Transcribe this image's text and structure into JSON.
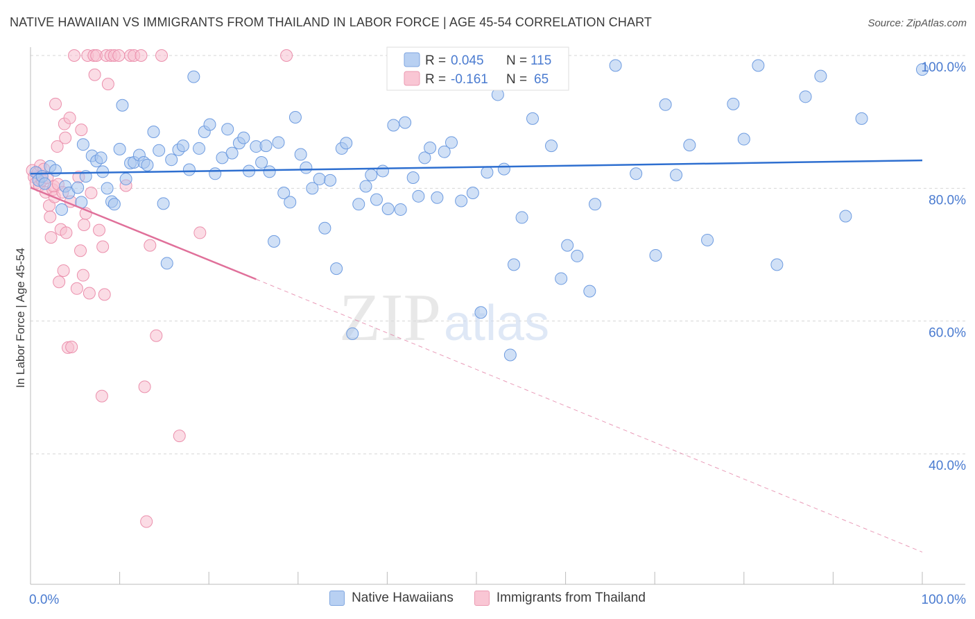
{
  "title": "NATIVE HAWAIIAN VS IMMIGRANTS FROM THAILAND IN LABOR FORCE | AGE 45-54 CORRELATION CHART",
  "source": "Source: ZipAtlas.com",
  "watermark": {
    "zip": "ZIP",
    "atlas": "atlas"
  },
  "colors": {
    "blue_fill": "#a9c6ef",
    "blue_stroke": "#6d9be0",
    "blue_line": "#2e6fd0",
    "pink_fill": "#f7bfd0",
    "pink_stroke": "#eb8fac",
    "pink_line": "#e0709a",
    "axis_text": "#4a7bd0",
    "grid": "#d6d6d6"
  },
  "stats": {
    "native": {
      "r_label": "R =",
      "r": "0.045",
      "n_label": "N =",
      "n": "115"
    },
    "thai": {
      "r_label": "R =",
      "r": "-0.161",
      "n_label": "N =",
      "n": "65"
    }
  },
  "chart_data": {
    "type": "scatter",
    "ylabel": "In Labor Force | Age 45-54",
    "xlim": [
      0,
      100
    ],
    "ylim": [
      20,
      102
    ],
    "x_tick_labels": [
      {
        "v": 0,
        "label": "0.0%"
      },
      {
        "v": 100,
        "label": "100.0%"
      }
    ],
    "y_tick_labels": [
      {
        "v": 100,
        "label": "100.0%"
      },
      {
        "v": 80,
        "label": "80.0%"
      },
      {
        "v": 60,
        "label": "60.0%"
      },
      {
        "v": 40,
        "label": "40.0%"
      }
    ],
    "series": [
      {
        "name": "Native Hawaiians",
        "trend": {
          "x0": 0,
          "y0": 82.2,
          "x1": 100,
          "y1": 84.2
        },
        "points": [
          [
            0.6,
            82.4
          ],
          [
            0.9,
            81.2
          ],
          [
            1.3,
            81.8
          ],
          [
            1.6,
            80.7
          ],
          [
            2.2,
            83.3
          ],
          [
            2.8,
            82.7
          ],
          [
            3.5,
            76.8
          ],
          [
            3.9,
            80.3
          ],
          [
            4.3,
            79.3
          ],
          [
            5.3,
            80.1
          ],
          [
            5.7,
            77.9
          ],
          [
            5.9,
            86.6
          ],
          [
            6.2,
            81.8
          ],
          [
            6.9,
            84.9
          ],
          [
            7.4,
            84.1
          ],
          [
            7.9,
            84.6
          ],
          [
            8.1,
            82.5
          ],
          [
            8.6,
            80.0
          ],
          [
            9.1,
            78.0
          ],
          [
            9.4,
            77.6
          ],
          [
            10.0,
            85.9
          ],
          [
            10.3,
            92.5
          ],
          [
            10.7,
            81.4
          ],
          [
            11.2,
            83.8
          ],
          [
            11.6,
            83.9
          ],
          [
            12.2,
            85.0
          ],
          [
            12.7,
            83.9
          ],
          [
            13.1,
            83.5
          ],
          [
            13.8,
            88.5
          ],
          [
            14.4,
            85.7
          ],
          [
            14.9,
            77.7
          ],
          [
            15.3,
            68.7
          ],
          [
            15.8,
            84.3
          ],
          [
            16.6,
            85.8
          ],
          [
            17.1,
            86.4
          ],
          [
            17.8,
            82.8
          ],
          [
            18.3,
            96.8
          ],
          [
            18.9,
            86.0
          ],
          [
            19.5,
            88.5
          ],
          [
            20.1,
            89.6
          ],
          [
            20.7,
            82.2
          ],
          [
            21.5,
            84.6
          ],
          [
            22.1,
            88.9
          ],
          [
            22.6,
            85.3
          ],
          [
            23.4,
            86.8
          ],
          [
            23.9,
            87.6
          ],
          [
            24.5,
            82.6
          ],
          [
            25.3,
            86.3
          ],
          [
            25.9,
            83.9
          ],
          [
            26.4,
            86.4
          ],
          [
            26.8,
            82.5
          ],
          [
            27.3,
            72.0
          ],
          [
            27.8,
            86.9
          ],
          [
            28.4,
            79.3
          ],
          [
            29.1,
            77.9
          ],
          [
            29.7,
            90.7
          ],
          [
            30.3,
            85.1
          ],
          [
            30.9,
            83.1
          ],
          [
            31.6,
            80.0
          ],
          [
            32.4,
            81.4
          ],
          [
            33.0,
            74.0
          ],
          [
            33.6,
            81.2
          ],
          [
            34.3,
            67.9
          ],
          [
            34.9,
            86.0
          ],
          [
            35.4,
            86.8
          ],
          [
            36.1,
            58.1
          ],
          [
            36.8,
            77.6
          ],
          [
            37.6,
            80.3
          ],
          [
            38.2,
            82.0
          ],
          [
            38.8,
            78.3
          ],
          [
            39.5,
            82.6
          ],
          [
            40.1,
            76.9
          ],
          [
            40.7,
            89.5
          ],
          [
            41.5,
            76.8
          ],
          [
            42.0,
            89.9
          ],
          [
            42.9,
            81.6
          ],
          [
            43.5,
            78.8
          ],
          [
            44.2,
            84.6
          ],
          [
            44.8,
            86.1
          ],
          [
            45.6,
            78.6
          ],
          [
            46.4,
            85.5
          ],
          [
            47.2,
            86.9
          ],
          [
            48.3,
            78.1
          ],
          [
            49.6,
            79.3
          ],
          [
            50.5,
            61.3
          ],
          [
            51.2,
            82.4
          ],
          [
            52.4,
            94.1
          ],
          [
            53.1,
            82.9
          ],
          [
            53.8,
            54.9
          ],
          [
            54.2,
            68.5
          ],
          [
            55.1,
            75.6
          ],
          [
            56.3,
            90.5
          ],
          [
            57.4,
            98.7
          ],
          [
            58.4,
            86.4
          ],
          [
            59.5,
            66.4
          ],
          [
            60.2,
            71.4
          ],
          [
            61.3,
            69.8
          ],
          [
            62.7,
            64.5
          ],
          [
            63.3,
            77.6
          ],
          [
            65.6,
            98.5
          ],
          [
            67.9,
            82.2
          ],
          [
            70.1,
            69.9
          ],
          [
            71.2,
            92.6
          ],
          [
            72.4,
            82.0
          ],
          [
            73.9,
            86.5
          ],
          [
            75.9,
            72.2
          ],
          [
            78.8,
            92.7
          ],
          [
            80.0,
            87.4
          ],
          [
            81.6,
            98.5
          ],
          [
            83.7,
            68.5
          ],
          [
            86.9,
            93.8
          ],
          [
            88.6,
            96.9
          ],
          [
            91.4,
            75.8
          ],
          [
            93.2,
            90.5
          ],
          [
            100.0,
            97.9
          ]
        ]
      },
      {
        "name": "Immigrants from Thailand",
        "trend": {
          "x0": 0,
          "y0": 80.1,
          "x1": 25.3,
          "y1": 66.3,
          "x2": 100,
          "y2": 25.2
        },
        "points": [
          [
            0.2,
            82.7
          ],
          [
            0.4,
            81.7
          ],
          [
            0.6,
            80.8
          ],
          [
            0.8,
            82.3
          ],
          [
            1.0,
            80.4
          ],
          [
            1.1,
            83.4
          ],
          [
            1.3,
            81.2
          ],
          [
            1.5,
            82.9
          ],
          [
            1.7,
            79.4
          ],
          [
            1.9,
            81.6
          ],
          [
            2.1,
            77.4
          ],
          [
            2.2,
            75.7
          ],
          [
            2.3,
            72.6
          ],
          [
            2.5,
            79.8
          ],
          [
            2.6,
            80.3
          ],
          [
            2.7,
            78.7
          ],
          [
            2.8,
            92.7
          ],
          [
            3.0,
            86.3
          ],
          [
            3.1,
            80.6
          ],
          [
            3.2,
            65.9
          ],
          [
            3.4,
            73.8
          ],
          [
            3.6,
            79.4
          ],
          [
            3.7,
            67.6
          ],
          [
            3.8,
            89.7
          ],
          [
            3.9,
            87.6
          ],
          [
            4.0,
            73.3
          ],
          [
            4.2,
            56.0
          ],
          [
            4.4,
            90.6
          ],
          [
            4.5,
            78.0
          ],
          [
            4.6,
            56.1
          ],
          [
            4.9,
            100.0
          ],
          [
            5.2,
            64.9
          ],
          [
            5.4,
            81.7
          ],
          [
            5.6,
            70.6
          ],
          [
            5.7,
            88.8
          ],
          [
            5.9,
            66.9
          ],
          [
            6.0,
            74.5
          ],
          [
            6.2,
            76.2
          ],
          [
            6.4,
            100.0
          ],
          [
            6.6,
            64.2
          ],
          [
            6.8,
            79.3
          ],
          [
            7.1,
            100.0
          ],
          [
            7.2,
            97.1
          ],
          [
            7.4,
            100.0
          ],
          [
            7.7,
            73.7
          ],
          [
            8.0,
            48.7
          ],
          [
            8.1,
            71.2
          ],
          [
            8.3,
            64.0
          ],
          [
            8.5,
            100.0
          ],
          [
            8.7,
            95.7
          ],
          [
            9.0,
            100.0
          ],
          [
            9.4,
            100.0
          ],
          [
            9.9,
            100.0
          ],
          [
            10.7,
            80.4
          ],
          [
            11.2,
            100.0
          ],
          [
            11.6,
            100.0
          ],
          [
            12.4,
            100.0
          ],
          [
            12.8,
            50.1
          ],
          [
            13.0,
            29.8
          ],
          [
            13.4,
            71.4
          ],
          [
            14.1,
            57.8
          ],
          [
            14.7,
            100.0
          ],
          [
            16.7,
            42.7
          ],
          [
            19.0,
            73.3
          ],
          [
            28.7,
            100.0
          ]
        ]
      }
    ]
  },
  "legend": {
    "native": "Native Hawaiians",
    "thai": "Immigrants from Thailand"
  }
}
